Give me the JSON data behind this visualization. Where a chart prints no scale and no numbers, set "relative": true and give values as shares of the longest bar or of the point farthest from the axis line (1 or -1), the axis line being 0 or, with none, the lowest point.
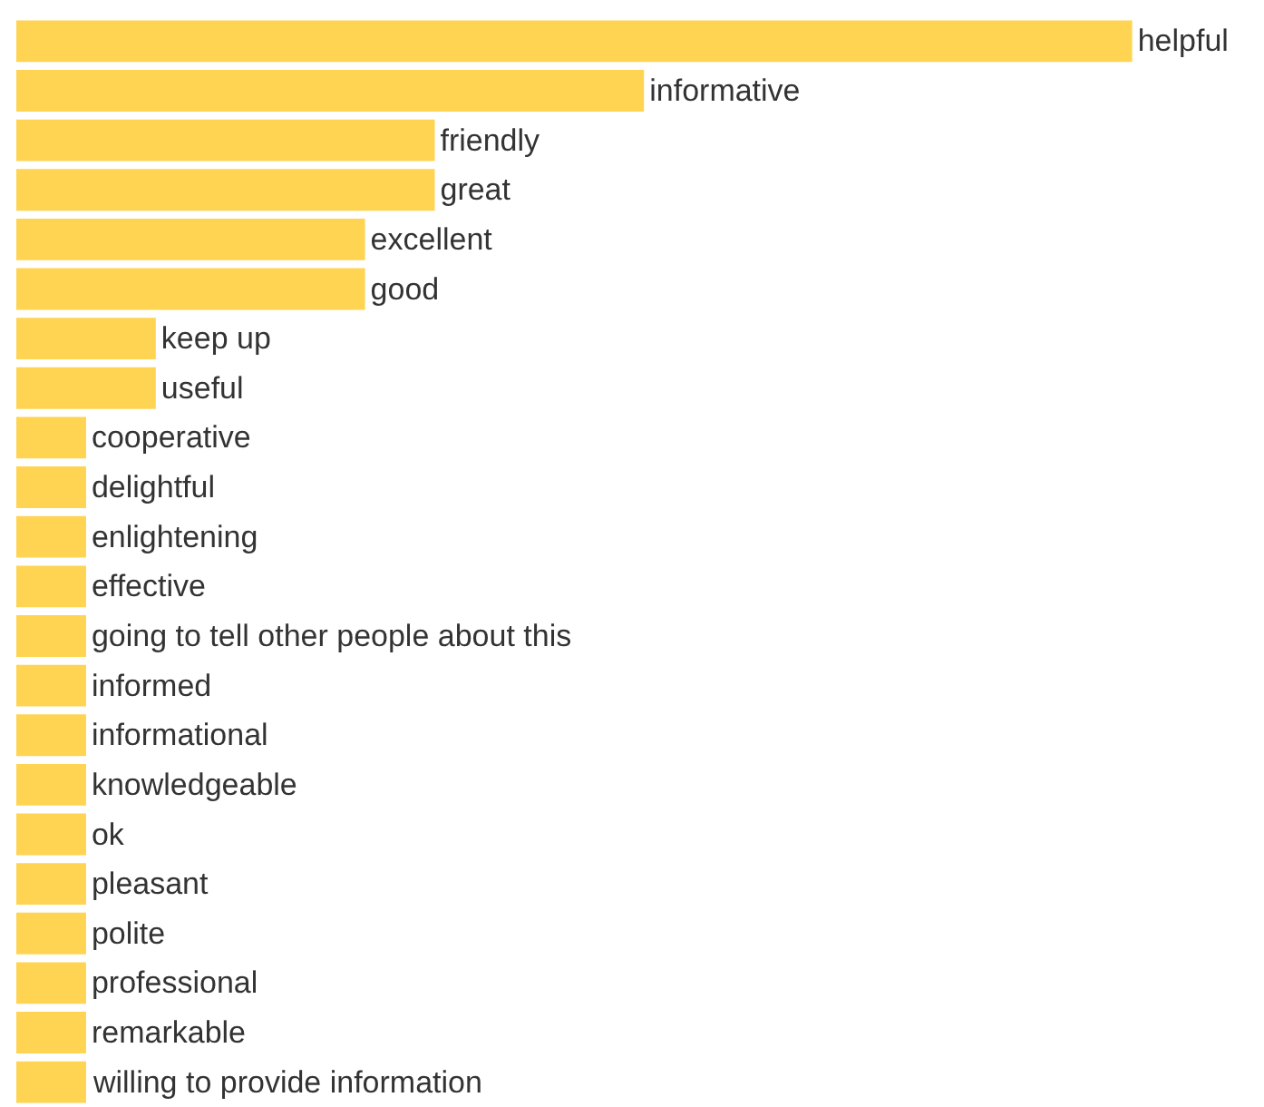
{
  "chart_data": {
    "type": "bar",
    "orientation": "horizontal",
    "relative": true,
    "color": "#fed452",
    "categories": [
      "helpful",
      "informative",
      "friendly",
      "great",
      "excellent",
      "good",
      "keep up",
      "useful",
      "cooperative",
      "delightful",
      "enlightening",
      "effective",
      "going to tell other people about this",
      "informed",
      "informational",
      "knowledgeable",
      "ok",
      "pleasant",
      "polite",
      "professional",
      "remarkable",
      "willing to provide information"
    ],
    "values": [
      1,
      0.5625,
      0.375,
      0.375,
      0.3125,
      0.3125,
      0.125,
      0.125,
      0.0625,
      0.0625,
      0.0625,
      0.0625,
      0.0625,
      0.0625,
      0.0625,
      0.0625,
      0.0625,
      0.0625,
      0.0625,
      0.0625,
      0.0625,
      0.0625
    ],
    "legend": false
  }
}
